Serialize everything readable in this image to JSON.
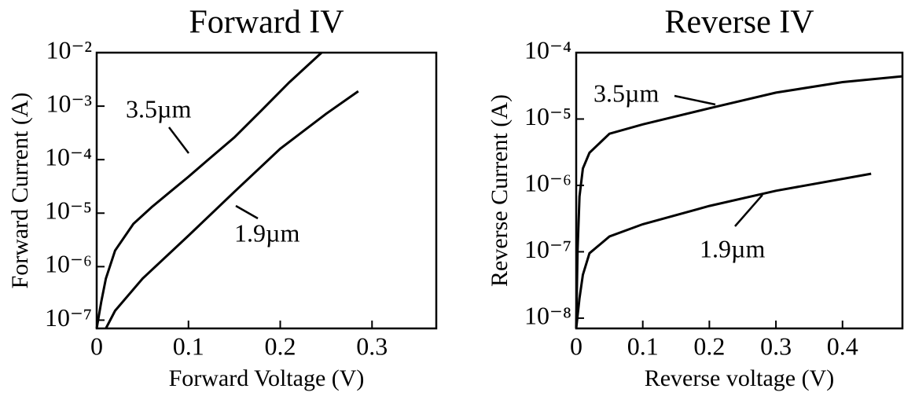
{
  "chart_data": [
    {
      "type": "line",
      "title": "Forward IV",
      "x_label": "Forward Voltage (V)",
      "y_label": "Forward Current (A)",
      "xlim": [
        0,
        0.37
      ],
      "xticks": [
        0,
        0.1,
        0.2,
        0.3
      ],
      "ylim": [
        7e-08,
        0.01
      ],
      "log_y": true,
      "yticks": [
        {
          "value": 0.01,
          "label": "10⁻²"
        },
        {
          "value": 0.001,
          "label": "10⁻³"
        },
        {
          "value": 0.0001,
          "label": "10⁻⁴"
        },
        {
          "value": 1e-05,
          "label": "10⁻⁵"
        },
        {
          "value": 1e-06,
          "label": "10⁻⁶"
        },
        {
          "value": 1e-07,
          "label": "10⁻⁷"
        }
      ],
      "series": [
        {
          "name": "3.5µm",
          "color": "#000000",
          "x": [
            0,
            0.005,
            0.01,
            0.02,
            0.04,
            0.06,
            0.08,
            0.1,
            0.12,
            0.15,
            0.18,
            0.21,
            0.245
          ],
          "values": [
            7e-08,
            2.2e-07,
            6e-07,
            2e-06,
            6.3e-06,
            1.3e-05,
            2.5e-05,
            4.8e-05,
            9.5e-05,
            0.00026,
            0.00085,
            0.0028,
            0.01
          ]
        },
        {
          "name": "1.9µm",
          "color": "#000000",
          "x": [
            0.01,
            0.02,
            0.05,
            0.1,
            0.15,
            0.2,
            0.25,
            0.285
          ],
          "values": [
            7e-08,
            1.5e-07,
            6e-07,
            3.8e-06,
            2.5e-05,
            0.00016,
            0.00072,
            0.0019
          ]
        }
      ]
    },
    {
      "type": "line",
      "title": "Reverse IV",
      "x_label": "Reverse voltage (V)",
      "y_label": "Reverse Current (A)",
      "xlim": [
        0,
        0.49
      ],
      "xticks": [
        0,
        0.1,
        0.2,
        0.3,
        0.4
      ],
      "ylim": [
        7e-09,
        0.0001
      ],
      "log_y": true,
      "yticks": [
        {
          "value": 0.0001,
          "label": "10⁻⁴"
        },
        {
          "value": 1e-05,
          "label": "10⁻⁵"
        },
        {
          "value": 1e-06,
          "label": "10⁻⁶"
        },
        {
          "value": 1e-07,
          "label": "10⁻⁷"
        },
        {
          "value": 1e-08,
          "label": "10⁻⁸"
        }
      ],
      "series": [
        {
          "name": "3.5µm",
          "color": "#000000",
          "x": [
            0,
            0.002,
            0.005,
            0.01,
            0.02,
            0.05,
            0.1,
            0.2,
            0.3,
            0.4,
            0.49
          ],
          "values": [
            7e-09,
            1e-07,
            6.8e-07,
            1.8e-06,
            3.1e-06,
            6e-06,
            8.3e-06,
            1.45e-05,
            2.5e-05,
            3.6e-05,
            4.4e-05
          ]
        },
        {
          "name": "1.9µm",
          "color": "#000000",
          "x": [
            0,
            0.005,
            0.01,
            0.02,
            0.05,
            0.1,
            0.2,
            0.3,
            0.443
          ],
          "values": [
            7e-09,
            2e-08,
            4.5e-08,
            9.5e-08,
            1.7e-07,
            2.6e-07,
            4.9e-07,
            8.3e-07,
            1.5e-06
          ]
        }
      ]
    }
  ]
}
